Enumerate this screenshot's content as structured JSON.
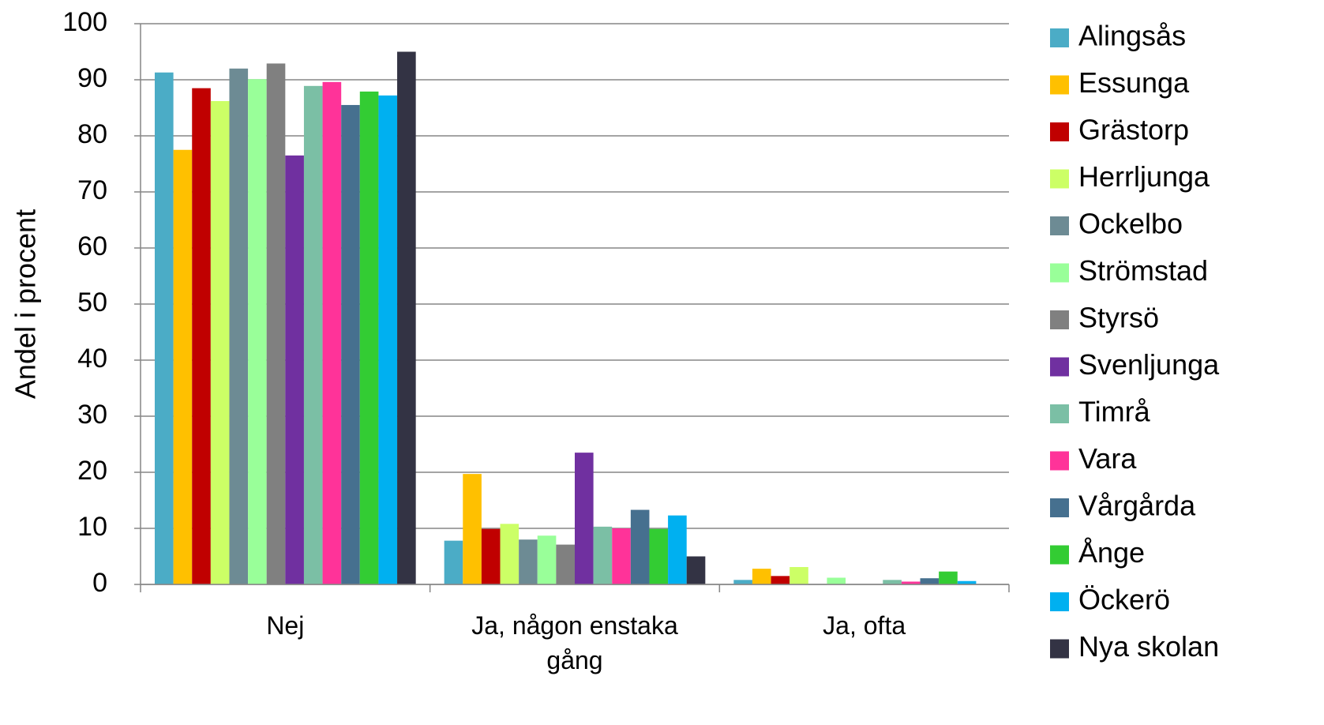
{
  "chart_data": {
    "type": "bar",
    "y_label": "Andel i procent",
    "categories": [
      "Nej",
      "Ja, någon enstaka gång",
      "Ja, ofta"
    ],
    "ylim": [
      0,
      100
    ],
    "yticks": [
      0,
      10,
      20,
      30,
      40,
      50,
      60,
      70,
      80,
      90,
      100
    ],
    "grid": true,
    "legend": "right",
    "series": [
      {
        "name": "Alingsås",
        "color": "#4bacc6",
        "values": [
          91.3,
          7.8,
          0.8
        ]
      },
      {
        "name": "Essunga",
        "color": "#ffc000",
        "values": [
          77.5,
          19.7,
          2.8
        ]
      },
      {
        "name": "Grästorp",
        "color": "#c00000",
        "values": [
          88.5,
          9.9,
          1.5
        ]
      },
      {
        "name": "Herrljunga",
        "color": "#ccff66",
        "values": [
          86.2,
          10.8,
          3.1
        ]
      },
      {
        "name": "Ockelbo",
        "color": "#6d8b94",
        "values": [
          92.0,
          8.0,
          0
        ]
      },
      {
        "name": "Strömstad",
        "color": "#99ff99",
        "values": [
          90.1,
          8.7,
          1.2
        ]
      },
      {
        "name": "Styrsö",
        "color": "#808080",
        "values": [
          92.9,
          7.1,
          0
        ]
      },
      {
        "name": "Svenljunga",
        "color": "#7030a0",
        "values": [
          76.5,
          23.5,
          0
        ]
      },
      {
        "name": "Timrå",
        "color": "#7bbfa5",
        "values": [
          88.9,
          10.3,
          0.8
        ]
      },
      {
        "name": "Vara",
        "color": "#ff3399",
        "values": [
          89.6,
          10.0,
          0.5
        ]
      },
      {
        "name": "Vårgårda",
        "color": "#46708f",
        "values": [
          85.5,
          13.3,
          1.1
        ]
      },
      {
        "name": "Ånge",
        "color": "#33cc33",
        "values": [
          87.9,
          9.9,
          2.3
        ]
      },
      {
        "name": "Öckerö",
        "color": "#00b0f0",
        "values": [
          87.2,
          12.3,
          0.6
        ]
      },
      {
        "name": "Nya skolan",
        "color": "#333344",
        "values": [
          95.0,
          5.0,
          0
        ]
      }
    ]
  }
}
